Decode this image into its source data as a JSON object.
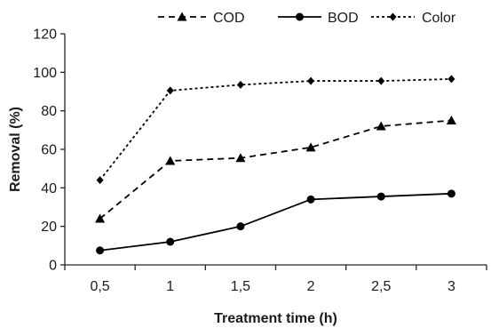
{
  "chart_data": {
    "type": "line",
    "title": "",
    "xlabel": "Treatment time (h)",
    "ylabel": "Removal (%)",
    "categories": [
      "0,5",
      "1",
      "1,5",
      "2",
      "2,5",
      "3"
    ],
    "ylim": [
      0,
      120
    ],
    "yticks": [
      "0",
      "20",
      "40",
      "60",
      "80",
      "100",
      "120"
    ],
    "grid": false,
    "legend_position": "top",
    "series": [
      {
        "name": "COD",
        "values": [
          24,
          54,
          55.5,
          61,
          72,
          75
        ],
        "marker": "triangle",
        "dash": "dashed",
        "color": "#000000"
      },
      {
        "name": "BOD",
        "values": [
          7.5,
          12,
          20,
          34,
          35.5,
          37
        ],
        "marker": "circle",
        "dash": "solid",
        "color": "#000000"
      },
      {
        "name": "Color",
        "values": [
          44,
          90.5,
          93.5,
          95.5,
          95.5,
          96.5
        ],
        "marker": "diamond",
        "dash": "dotted",
        "color": "#000000"
      }
    ]
  }
}
